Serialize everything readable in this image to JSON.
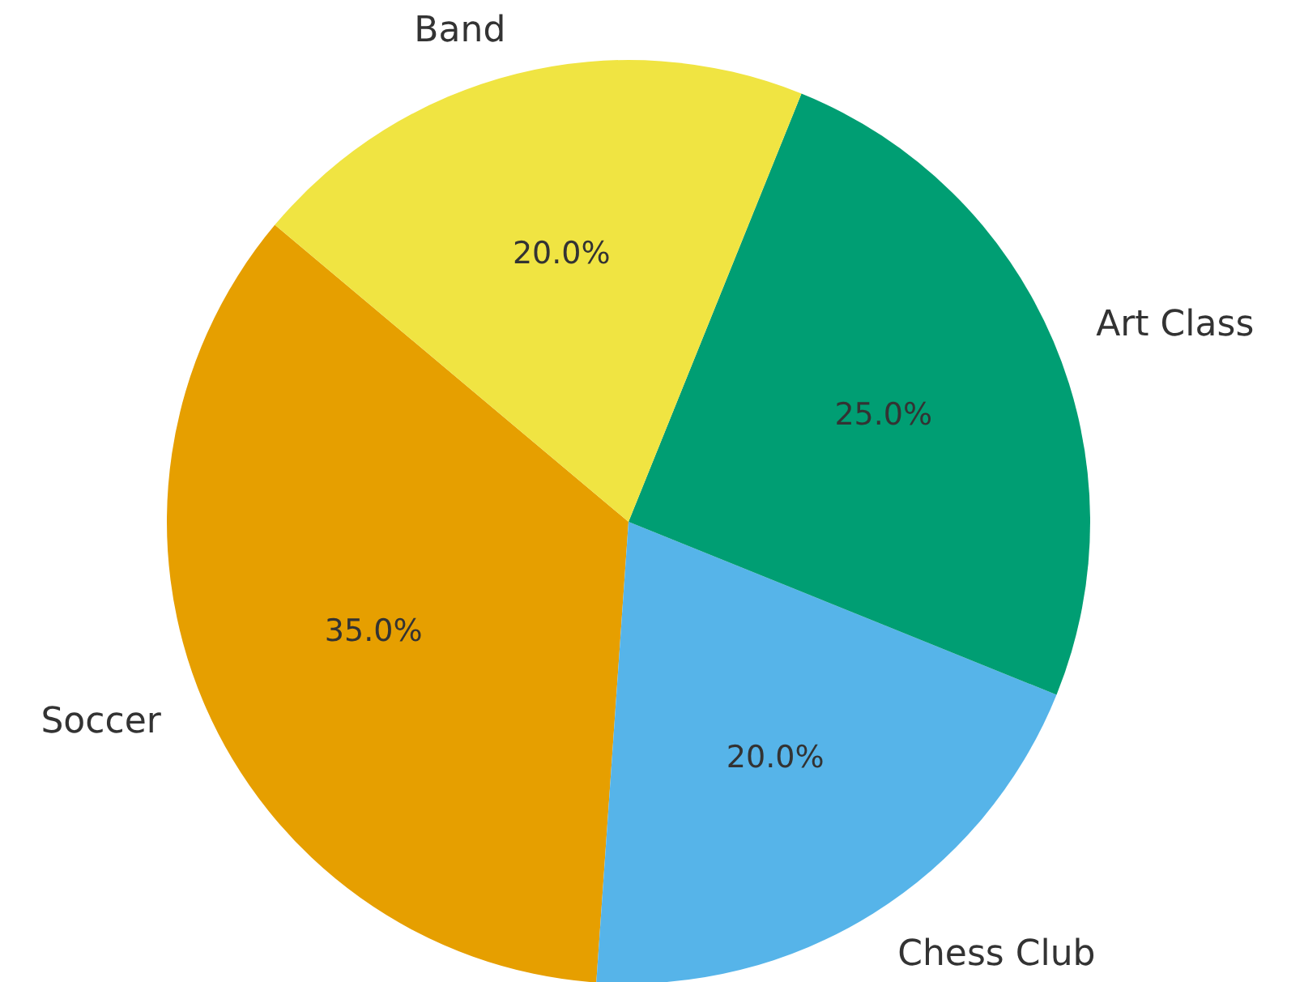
{
  "chart_data": {
    "type": "pie",
    "categories": [
      "Soccer",
      "Chess Club",
      "Art Class",
      "Band"
    ],
    "values": [
      35,
      20,
      25,
      20
    ],
    "colors": [
      "#e69f00",
      "#56b4e9",
      "#009e73",
      "#f0e442"
    ],
    "value_labels": [
      "35.0%",
      "20.0%",
      "25.0%",
      "20.0%"
    ]
  }
}
